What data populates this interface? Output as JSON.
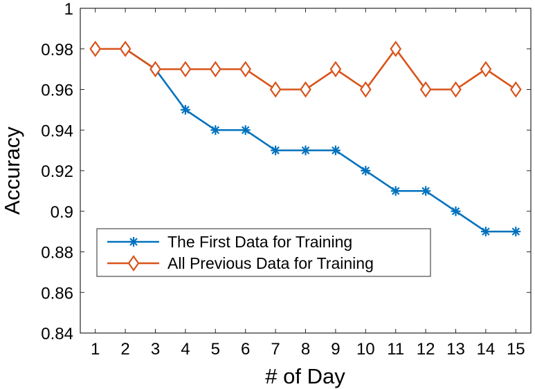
{
  "chart_data": {
    "type": "line",
    "title": "",
    "xlabel": "# of Day",
    "ylabel": "Accuracy",
    "x": [
      1,
      2,
      3,
      4,
      5,
      6,
      7,
      8,
      9,
      10,
      11,
      12,
      13,
      14,
      15
    ],
    "xlim": [
      0.5,
      15.5
    ],
    "ylim": [
      0.84,
      1
    ],
    "xticks": [
      "1",
      "2",
      "3",
      "4",
      "5",
      "6",
      "7",
      "8",
      "9",
      "10",
      "11",
      "12",
      "13",
      "14",
      "15"
    ],
    "yticks": [
      "0.84",
      "0.86",
      "0.88",
      "0.9",
      "0.92",
      "0.94",
      "0.96",
      "0.98",
      "1"
    ],
    "ytick_values": [
      0.84,
      0.86,
      0.88,
      0.9,
      0.92,
      0.94,
      0.96,
      0.98,
      1
    ],
    "grid": false,
    "legend_position": "lower-left",
    "series": [
      {
        "name": "The First Data for Training",
        "color": "#0072BD",
        "marker": "asterisk",
        "values": [
          0.98,
          0.98,
          0.97,
          0.95,
          0.94,
          0.94,
          0.93,
          0.93,
          0.93,
          0.92,
          0.91,
          0.91,
          0.9,
          0.89,
          0.89
        ]
      },
      {
        "name": "All Previous Data for Training",
        "color": "#D95319",
        "marker": "diamond",
        "values": [
          0.98,
          0.98,
          0.97,
          0.97,
          0.97,
          0.97,
          0.96,
          0.96,
          0.97,
          0.96,
          0.98,
          0.96,
          0.96,
          0.97,
          0.96
        ]
      }
    ]
  }
}
